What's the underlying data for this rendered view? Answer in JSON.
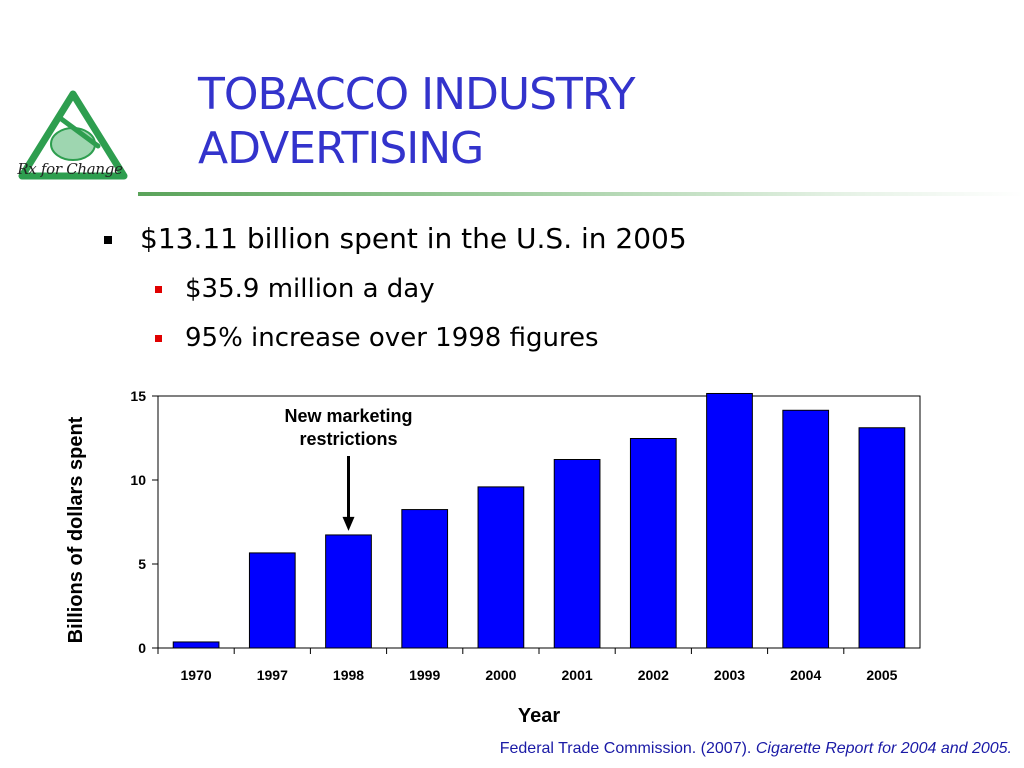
{
  "slide": {
    "title_lines": [
      "TOBACCO INDUSTRY",
      "ADVERTISING"
    ],
    "logo_text": "Rx for Change",
    "bullets": [
      {
        "level": 1,
        "text": "$13.11 billion spent in the U.S. in 2005"
      },
      {
        "level": 2,
        "text": "$35.9 million a day"
      },
      {
        "level": 2,
        "text": "95% increase over 1998 figures"
      }
    ],
    "source_plain": "Federal Trade Commission. (2007). ",
    "source_italic": "Cigarette Report for 2004 and 2005."
  },
  "colors": {
    "title": "#3333cc",
    "bar": "#0000ff",
    "bullet_lvl2": "#e00000",
    "logo_green": "#2e9e4f"
  },
  "chart_data": {
    "type": "bar",
    "categories": [
      "1970",
      "1997",
      "1998",
      "1999",
      "2000",
      "2001",
      "2002",
      "2003",
      "2004",
      "2005"
    ],
    "values": [
      0.36,
      5.66,
      6.73,
      8.24,
      9.59,
      11.22,
      12.47,
      15.15,
      14.15,
      13.11
    ],
    "xlabel": "Year",
    "ylabel": "Billions of dollars spent",
    "ylim": [
      0,
      15
    ],
    "yticks": [
      0,
      5,
      10,
      15
    ],
    "grid": false,
    "annotation": {
      "text_lines": [
        "New marketing",
        "restrictions"
      ],
      "category": "1998"
    }
  }
}
